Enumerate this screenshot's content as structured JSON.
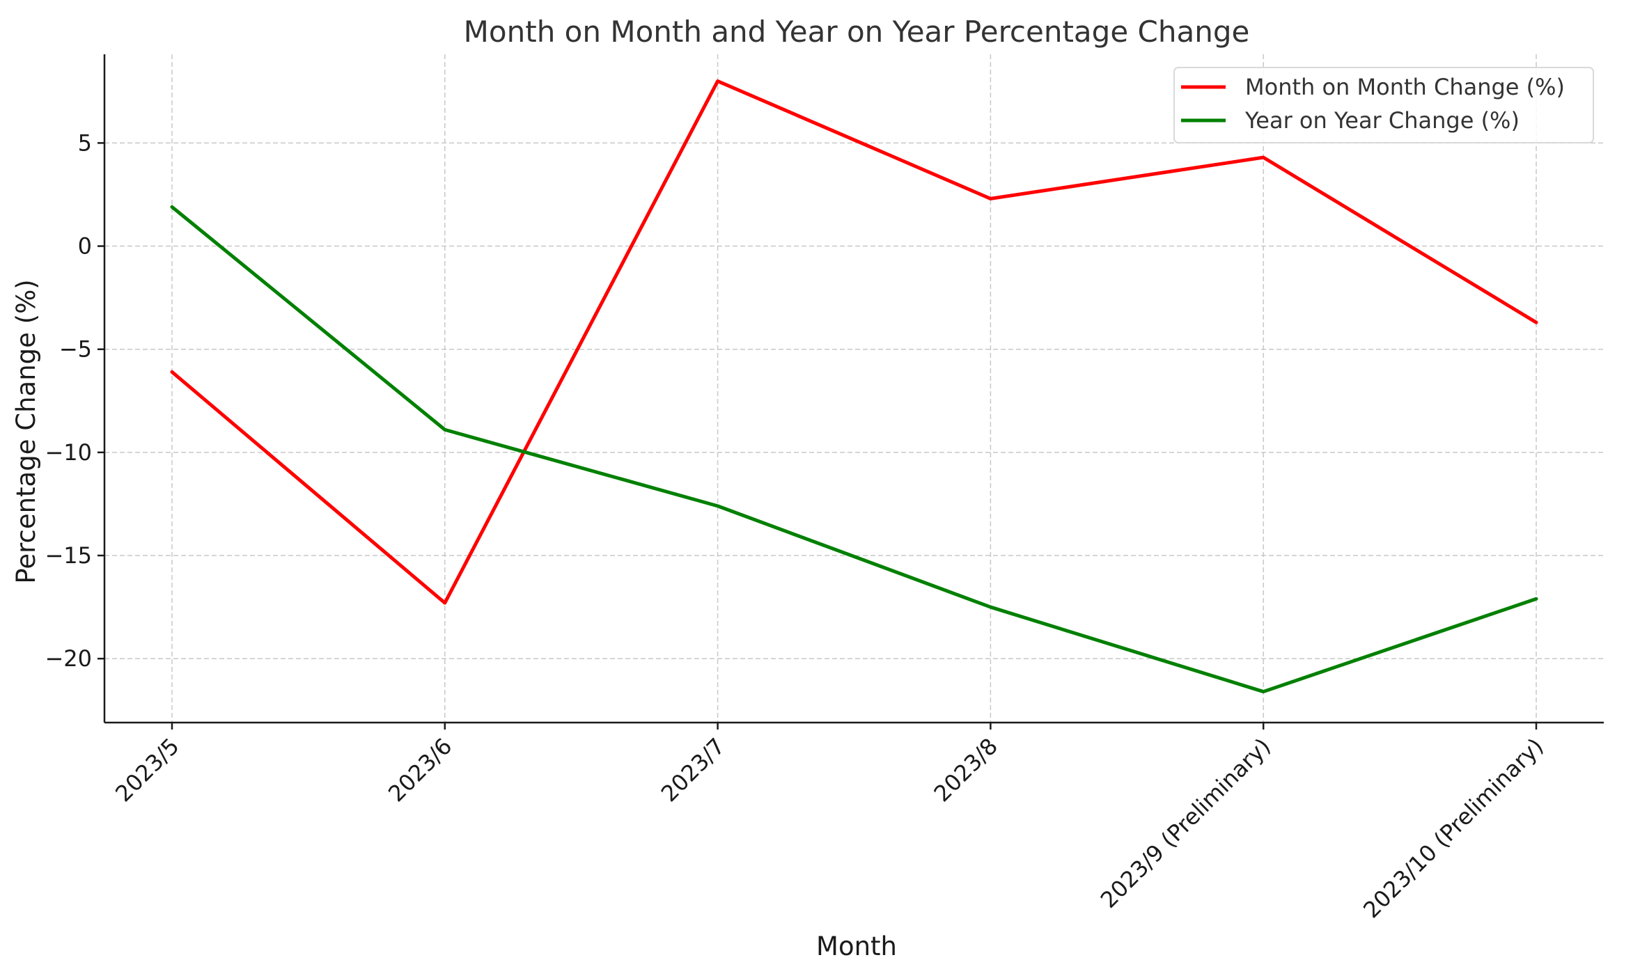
{
  "chart_data": {
    "type": "line",
    "title": "Month on Month and Year on Year Percentage Change",
    "xlabel": "Month",
    "ylabel": "Percentage Change (%)",
    "categories": [
      "2023/5",
      "2023/6",
      "2023/7",
      "2023/8",
      "2023/9 (Preliminary)",
      "2023/10 (Preliminary)"
    ],
    "series": [
      {
        "name": "Month on Month Change (%)",
        "color": "#ff0000",
        "values": [
          -6.1,
          -17.3,
          8.0,
          2.3,
          4.3,
          -3.7
        ]
      },
      {
        "name": "Year on Year Change (%)",
        "color": "#008000",
        "values": [
          1.9,
          -8.9,
          -12.6,
          -17.5,
          -21.6,
          -17.1
        ]
      }
    ],
    "ylim": [
      -23.1,
      9.3
    ],
    "yticks": [
      5,
      0,
      -5,
      -10,
      -15,
      -20
    ],
    "ytick_labels": [
      "5",
      "0",
      "−5",
      "−10",
      "−15",
      "−20"
    ],
    "grid": true,
    "legend_position": "top-right"
  }
}
